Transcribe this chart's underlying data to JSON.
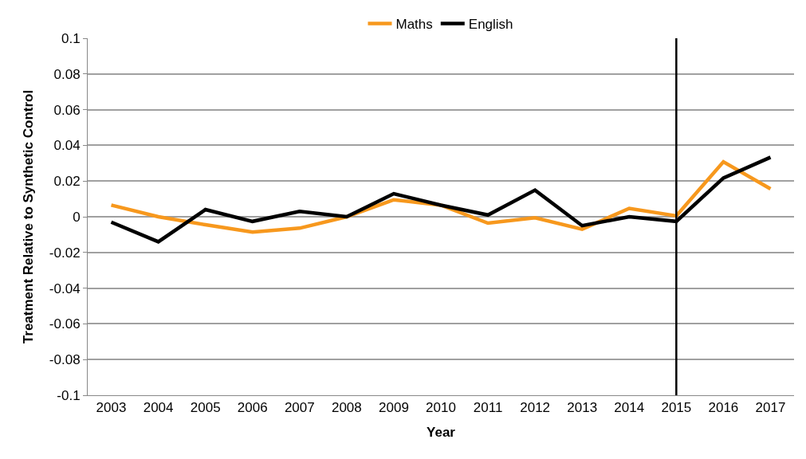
{
  "chart_data": {
    "type": "line",
    "xlabel": "Year",
    "ylabel": "Treatment Relative to Synthetic Control",
    "categories": [
      "2003",
      "2004",
      "2005",
      "2006",
      "2007",
      "2008",
      "2009",
      "2010",
      "2011",
      "2012",
      "2013",
      "2014",
      "2015",
      "2016",
      "2017"
    ],
    "series": [
      {
        "name": "Maths",
        "color": "#f7981d",
        "values": [
          0.0065,
          0,
          -0.0045,
          -0.0086,
          -0.0064,
          0,
          0.0095,
          0.0065,
          -0.0036,
          -0.0006,
          -0.007,
          0.0047,
          0.0005,
          0.0308,
          0.0156
        ]
      },
      {
        "name": "English",
        "color": "#000000",
        "values": [
          -0.003,
          -0.014,
          0.004,
          -0.0026,
          0.003,
          0,
          0.0129,
          0.0065,
          0.001,
          0.0149,
          -0.005,
          0,
          -0.0026,
          0.0217,
          0.0333
        ]
      }
    ],
    "ylim": [
      -0.1,
      0.1
    ],
    "yticks": [
      {
        "value": -0.1,
        "label": "-0.1"
      },
      {
        "value": -0.08,
        "label": "-0.08"
      },
      {
        "value": -0.06,
        "label": "-0.06"
      },
      {
        "value": -0.04,
        "label": "-0.04"
      },
      {
        "value": -0.02,
        "label": "-0.02"
      },
      0,
      0.02,
      0.04,
      0.06,
      0.08,
      0.1
    ],
    "ref_lines": [
      {
        "axis": "x",
        "value": "2015",
        "color": "#000000"
      }
    ],
    "grid": "y",
    "legend": "top",
    "marker": "none",
    "line_style": "solid"
  }
}
